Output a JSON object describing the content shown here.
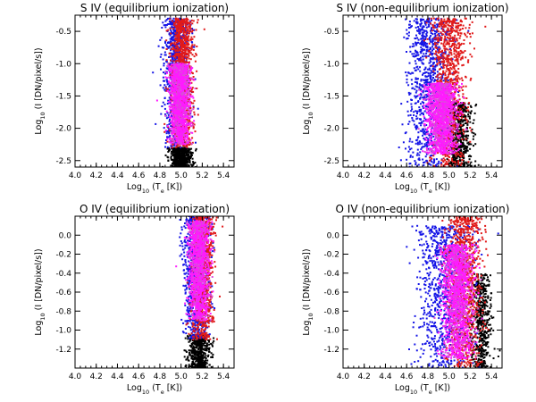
{
  "chart_data": [
    {
      "type": "scatter",
      "title": "S IV (equilibrium ionization)",
      "xlabel": "Log10 (Te [K])",
      "ylabel": "Log10 (I [DN/pixel/s])",
      "xlim": [
        4.0,
        5.5
      ],
      "ylim": [
        -2.6,
        -0.25
      ],
      "xticks": [
        "4.0",
        "4.2",
        "4.4",
        "4.6",
        "4.8",
        "5.0",
        "5.2",
        "5.4"
      ],
      "yticks": [
        "-2.5",
        "-2.0",
        "-1.5",
        "-1.0",
        "-0.5"
      ],
      "colors": {
        "black": "#000000",
        "blue": "#1515e6",
        "red": "#e11a1a",
        "magenta": "#ff1aff",
        "pink": "#d94fd9"
      },
      "clusters": [
        {
          "color": "black",
          "cx": 5.0,
          "sx": 0.05,
          "y_from": -2.6,
          "y_to": -2.3,
          "note": "dense bottom cluster"
        },
        {
          "color": "blue",
          "cx": 4.96,
          "sx": 0.06,
          "y_from": -2.3,
          "y_to": -0.3
        },
        {
          "color": "red",
          "cx": 5.01,
          "sx": 0.055,
          "y_from": -2.3,
          "y_to": -0.3
        },
        {
          "color": "magenta",
          "cx": 4.99,
          "sx": 0.045,
          "y_from": -2.25,
          "y_to": -1.0,
          "note": "main core"
        }
      ]
    },
    {
      "type": "scatter",
      "title": "S IV (non-equilibrium ionization)",
      "xlabel": "Log10 (Te [K])",
      "ylabel": "Log10 (I [DN/pixel/s])",
      "xlim": [
        4.0,
        5.5
      ],
      "ylim": [
        -2.6,
        -0.25
      ],
      "xticks": [
        "4.0",
        "4.2",
        "4.4",
        "4.6",
        "4.8",
        "5.0",
        "5.2",
        "5.4"
      ],
      "yticks": [
        "-2.5",
        "-2.0",
        "-1.5",
        "-1.0",
        "-0.5"
      ],
      "clusters": [
        {
          "color": "black",
          "cx": 5.1,
          "sx": 0.06,
          "y_from": -2.6,
          "y_to": -1.6
        },
        {
          "color": "blue",
          "cx": 4.8,
          "sx": 0.1,
          "y_from": -2.6,
          "y_to": -0.3,
          "note": "broad low-temperature wing"
        },
        {
          "color": "red",
          "cx": 5.0,
          "sx": 0.08,
          "y_from": -2.6,
          "y_to": -0.3
        },
        {
          "color": "magenta",
          "cx": 4.93,
          "sx": 0.07,
          "y_from": -2.4,
          "y_to": -1.3
        }
      ]
    },
    {
      "type": "scatter",
      "title": "O IV (equilibrium ionization)",
      "xlabel": "Log10 (Te [K])",
      "ylabel": "Log10 (I [DN/pixel/s])",
      "xlim": [
        4.0,
        5.5
      ],
      "ylim": [
        -1.4,
        0.2
      ],
      "xticks": [
        "4.0",
        "4.2",
        "4.4",
        "4.6",
        "4.8",
        "5.0",
        "5.2",
        "5.4"
      ],
      "yticks": [
        "-1.2",
        "-1.0",
        "-0.8",
        "-0.6",
        "-0.4",
        "-0.2",
        "0.0"
      ],
      "clusters": [
        {
          "color": "black",
          "cx": 5.17,
          "sx": 0.05,
          "y_from": -1.4,
          "y_to": -1.05
        },
        {
          "color": "blue",
          "cx": 5.15,
          "sx": 0.06,
          "y_from": -1.1,
          "y_to": 0.2
        },
        {
          "color": "red",
          "cx": 5.2,
          "sx": 0.05,
          "y_from": -1.1,
          "y_to": 0.2
        },
        {
          "color": "magenta",
          "cx": 5.17,
          "sx": 0.045,
          "y_from": -0.9,
          "y_to": 0.15,
          "note": "main core"
        }
      ]
    },
    {
      "type": "scatter",
      "title": "O IV (non-equilibrium ionization)",
      "xlabel": "Log10 (Te [K])",
      "ylabel": "Log10 (I [DN/pixel/s])",
      "xlim": [
        4.0,
        5.5
      ],
      "ylim": [
        -1.4,
        0.2
      ],
      "xticks": [
        "4.0",
        "4.2",
        "4.4",
        "4.6",
        "4.8",
        "5.0",
        "5.2",
        "5.4"
      ],
      "yticks": [
        "-1.2",
        "-1.0",
        "-0.8",
        "-0.6",
        "-0.4",
        "-0.2",
        "0.0"
      ],
      "clusters": [
        {
          "color": "black",
          "cx": 5.3,
          "sx": 0.05,
          "y_from": -1.4,
          "y_to": -0.4
        },
        {
          "color": "blue",
          "cx": 4.95,
          "sx": 0.12,
          "y_from": -1.4,
          "y_to": 0.1,
          "note": "broad low-temperature wing"
        },
        {
          "color": "red",
          "cx": 5.15,
          "sx": 0.08,
          "y_from": -1.4,
          "y_to": 0.2
        },
        {
          "color": "magenta",
          "cx": 5.08,
          "sx": 0.07,
          "y_from": -1.3,
          "y_to": -0.1
        }
      ]
    }
  ]
}
